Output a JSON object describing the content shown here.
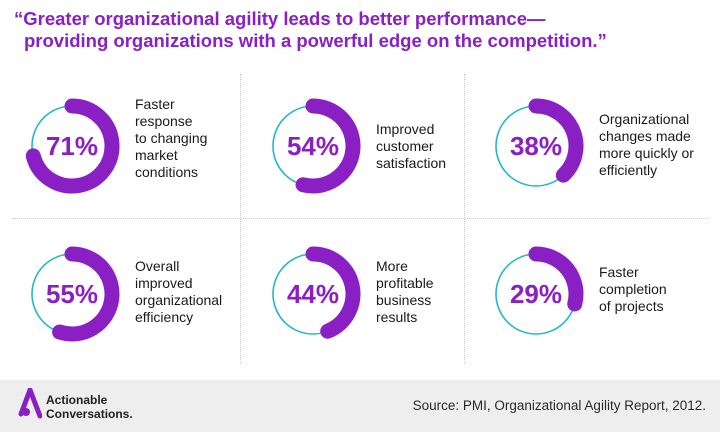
{
  "headline": {
    "line1": "“Greater organizational agility leads to better performance—",
    "line2": "providing organizations with a powerful edge on the competition.”"
  },
  "colors": {
    "accent": "#8a1fc4",
    "ring_track": "#23b6c9",
    "divider": "#c9c9c9",
    "footer_bg": "#eeeeee"
  },
  "stats": [
    {
      "percent": 71,
      "label": "71%",
      "desc": [
        "Faster",
        "response",
        "to changing",
        "market",
        "conditions"
      ]
    },
    {
      "percent": 54,
      "label": "54%",
      "desc": [
        "Improved",
        "customer",
        "satisfaction"
      ]
    },
    {
      "percent": 38,
      "label": "38%",
      "desc": [
        "Organizational",
        "changes made",
        "more quickly or",
        "efficiently"
      ]
    },
    {
      "percent": 55,
      "label": "55%",
      "desc": [
        "Overall",
        "improved",
        "organizational",
        "efficiency"
      ]
    },
    {
      "percent": 44,
      "label": "44%",
      "desc": [
        "More",
        "profitable",
        "business",
        "results"
      ]
    },
    {
      "percent": 29,
      "label": "29%",
      "desc": [
        "Faster",
        "completion",
        "of projects"
      ]
    }
  ],
  "footer": {
    "logo_line1": "Actionable",
    "logo_line2": "Conversations.",
    "logo_icon": "actionable-conversations-a-logo",
    "source": "Source: PMI, Organizational Agility Report, 2012."
  }
}
